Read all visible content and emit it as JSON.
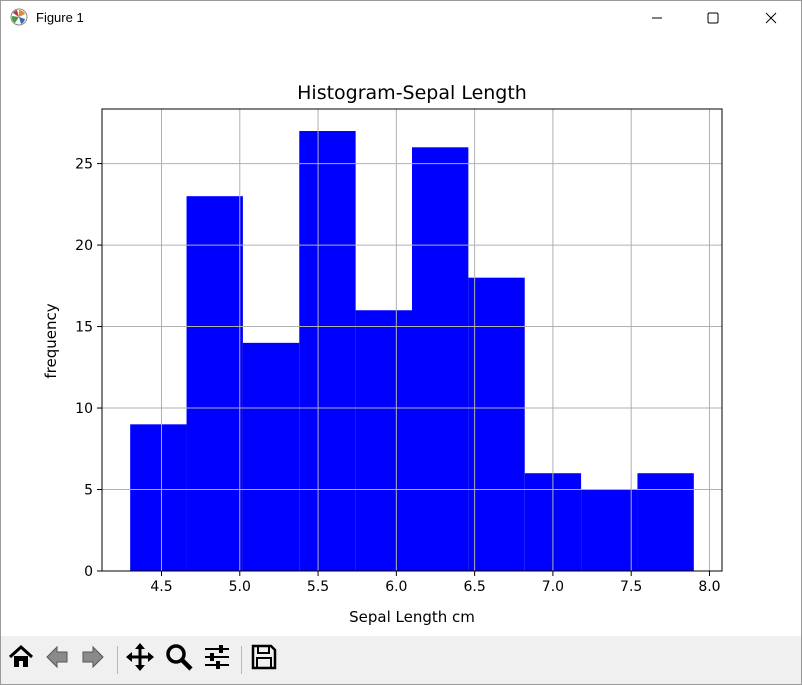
{
  "window": {
    "title": "Figure 1"
  },
  "titlebar_buttons": {
    "minimize_icon": "minimize-icon",
    "maximize_icon": "maximize-icon",
    "close_icon": "close-icon"
  },
  "toolbar": {
    "icons": [
      "home-icon",
      "back-arrow-icon",
      "forward-arrow-icon",
      "pan-move-icon",
      "zoom-magnifier-icon",
      "subplots-sliders-icon",
      "save-floppy-icon"
    ]
  },
  "chart_data": {
    "type": "bar",
    "title": "Histogram-Sepal Length",
    "xlabel": "Sepal Length cm",
    "ylabel": "frequency",
    "bar_color": "#0000ff",
    "grid": true,
    "xlim": [
      4.12,
      8.08
    ],
    "ylim": [
      0,
      28.35
    ],
    "x_ticks": [
      "4.5",
      "5.0",
      "5.5",
      "6.0",
      "6.5",
      "7.0",
      "7.5",
      "8.0"
    ],
    "x_tick_values": [
      4.5,
      5.0,
      5.5,
      6.0,
      6.5,
      7.0,
      7.5,
      8.0
    ],
    "y_ticks": [
      "0",
      "5",
      "10",
      "15",
      "20",
      "25"
    ],
    "y_tick_values": [
      0,
      5,
      10,
      15,
      20,
      25
    ],
    "bin_edges": [
      4.3,
      4.66,
      5.02,
      5.38,
      5.74,
      6.1,
      6.46,
      6.82,
      7.18,
      7.54,
      7.9
    ],
    "values": [
      9,
      23,
      14,
      27,
      16,
      26,
      18,
      6,
      5,
      6
    ]
  }
}
